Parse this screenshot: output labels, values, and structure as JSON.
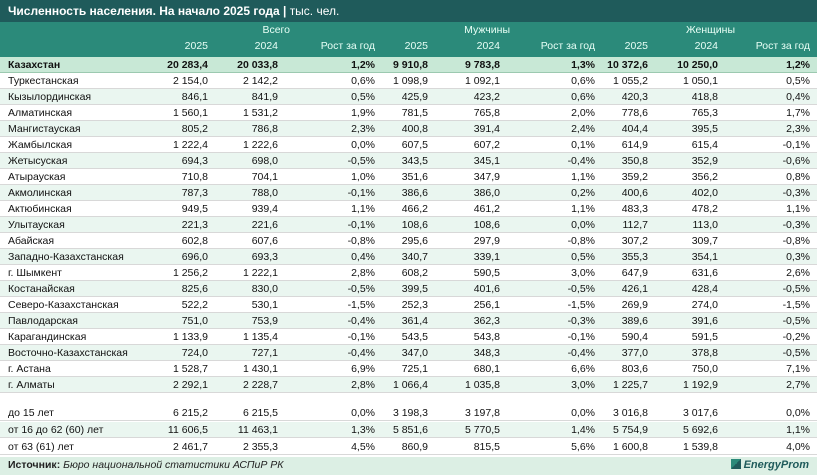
{
  "title": "Численность населения. На начало 2025 года",
  "title_sep": " | ",
  "unit": "тыс. чел.",
  "groups": [
    "Всего",
    "Мужчины",
    "Женщины"
  ],
  "subheaders": [
    "2025",
    "2024",
    "Рост за год",
    "2025",
    "2024",
    "Рост за год",
    "2025",
    "2024",
    "Рост за год"
  ],
  "total": {
    "name": "Казахстан",
    "v": [
      "20 283,4",
      "20 033,8",
      "1,2%",
      "9 910,8",
      "9 783,8",
      "1,3%",
      "10 372,6",
      "10 250,0",
      "1,2%"
    ]
  },
  "regions": [
    {
      "name": "Туркестанская",
      "v": [
        "2 154,0",
        "2 142,2",
        "0,6%",
        "1 098,9",
        "1 092,1",
        "0,6%",
        "1 055,2",
        "1 050,1",
        "0,5%"
      ]
    },
    {
      "name": "Кызылординская",
      "v": [
        "846,1",
        "841,9",
        "0,5%",
        "425,9",
        "423,2",
        "0,6%",
        "420,3",
        "418,8",
        "0,4%"
      ]
    },
    {
      "name": "Алматинская",
      "v": [
        "1 560,1",
        "1 531,2",
        "1,9%",
        "781,5",
        "765,8",
        "2,0%",
        "778,6",
        "765,3",
        "1,7%"
      ]
    },
    {
      "name": "Мангистауская",
      "v": [
        "805,2",
        "786,8",
        "2,3%",
        "400,8",
        "391,4",
        "2,4%",
        "404,4",
        "395,5",
        "2,3%"
      ]
    },
    {
      "name": "Жамбылская",
      "v": [
        "1 222,4",
        "1 222,6",
        "0,0%",
        "607,5",
        "607,2",
        "0,1%",
        "614,9",
        "615,4",
        "-0,1%"
      ]
    },
    {
      "name": "Жетысуская",
      "v": [
        "694,3",
        "698,0",
        "-0,5%",
        "343,5",
        "345,1",
        "-0,4%",
        "350,8",
        "352,9",
        "-0,6%"
      ]
    },
    {
      "name": "Атырауская",
      "v": [
        "710,8",
        "704,1",
        "1,0%",
        "351,6",
        "347,9",
        "1,1%",
        "359,2",
        "356,2",
        "0,8%"
      ]
    },
    {
      "name": "Акмолинская",
      "v": [
        "787,3",
        "788,0",
        "-0,1%",
        "386,6",
        "386,0",
        "0,2%",
        "400,6",
        "402,0",
        "-0,3%"
      ]
    },
    {
      "name": "Актюбинская",
      "v": [
        "949,5",
        "939,4",
        "1,1%",
        "466,2",
        "461,2",
        "1,1%",
        "483,3",
        "478,2",
        "1,1%"
      ]
    },
    {
      "name": "Улытауская",
      "v": [
        "221,3",
        "221,6",
        "-0,1%",
        "108,6",
        "108,6",
        "0,0%",
        "112,7",
        "113,0",
        "-0,3%"
      ]
    },
    {
      "name": "Абайская",
      "v": [
        "602,8",
        "607,6",
        "-0,8%",
        "295,6",
        "297,9",
        "-0,8%",
        "307,2",
        "309,7",
        "-0,8%"
      ]
    },
    {
      "name": "Западно-Казахстанская",
      "v": [
        "696,0",
        "693,3",
        "0,4%",
        "340,7",
        "339,1",
        "0,5%",
        "355,3",
        "354,1",
        "0,3%"
      ]
    },
    {
      "name": "г. Шымкент",
      "v": [
        "1 256,2",
        "1 222,1",
        "2,8%",
        "608,2",
        "590,5",
        "3,0%",
        "647,9",
        "631,6",
        "2,6%"
      ]
    },
    {
      "name": "Костанайская",
      "v": [
        "825,6",
        "830,0",
        "-0,5%",
        "399,5",
        "401,6",
        "-0,5%",
        "426,1",
        "428,4",
        "-0,5%"
      ]
    },
    {
      "name": "Северо-Казахстанская",
      "v": [
        "522,2",
        "530,1",
        "-1,5%",
        "252,3",
        "256,1",
        "-1,5%",
        "269,9",
        "274,0",
        "-1,5%"
      ]
    },
    {
      "name": "Павлодарская",
      "v": [
        "751,0",
        "753,9",
        "-0,4%",
        "361,4",
        "362,3",
        "-0,3%",
        "389,6",
        "391,6",
        "-0,5%"
      ]
    },
    {
      "name": "Карагандинская",
      "v": [
        "1 133,9",
        "1 135,4",
        "-0,1%",
        "543,5",
        "543,8",
        "-0,1%",
        "590,4",
        "591,5",
        "-0,2%"
      ]
    },
    {
      "name": "Восточно-Казахстанская",
      "v": [
        "724,0",
        "727,1",
        "-0,4%",
        "347,0",
        "348,3",
        "-0,4%",
        "377,0",
        "378,8",
        "-0,5%"
      ]
    },
    {
      "name": "г. Астана",
      "v": [
        "1 528,7",
        "1 430,1",
        "6,9%",
        "725,1",
        "680,1",
        "6,6%",
        "803,6",
        "750,0",
        "7,1%"
      ]
    },
    {
      "name": "г. Алматы",
      "v": [
        "2 292,1",
        "2 228,7",
        "2,8%",
        "1 066,4",
        "1 035,8",
        "3,0%",
        "1 225,7",
        "1 192,9",
        "2,7%"
      ]
    }
  ],
  "ages": [
    {
      "name": "до 15 лет",
      "v": [
        "6 215,2",
        "6 215,5",
        "0,0%",
        "3 198,3",
        "3 197,8",
        "0,0%",
        "3 016,8",
        "3 017,6",
        "0,0%"
      ]
    },
    {
      "name": "от 16 до 62 (60) лет",
      "v": [
        "11 606,5",
        "11 463,1",
        "1,3%",
        "5 851,6",
        "5 770,5",
        "1,4%",
        "5 754,9",
        "5 692,6",
        "1,1%"
      ]
    },
    {
      "name": "от 63 (61) лет",
      "v": [
        "2 461,7",
        "2 355,3",
        "4,5%",
        "860,9",
        "815,5",
        "5,6%",
        "1 600,8",
        "1 539,8",
        "4,0%"
      ]
    }
  ],
  "source_label": "Источник:",
  "source_text": "Бюро национальной статистики АСПиР РК",
  "logo": "EnergyProm",
  "colors": {
    "title_bg": "#1f5b5b",
    "header_bg": "#2b8a7a",
    "alt_row": "#eaf6f0",
    "total_row": "#c8e8d6"
  }
}
